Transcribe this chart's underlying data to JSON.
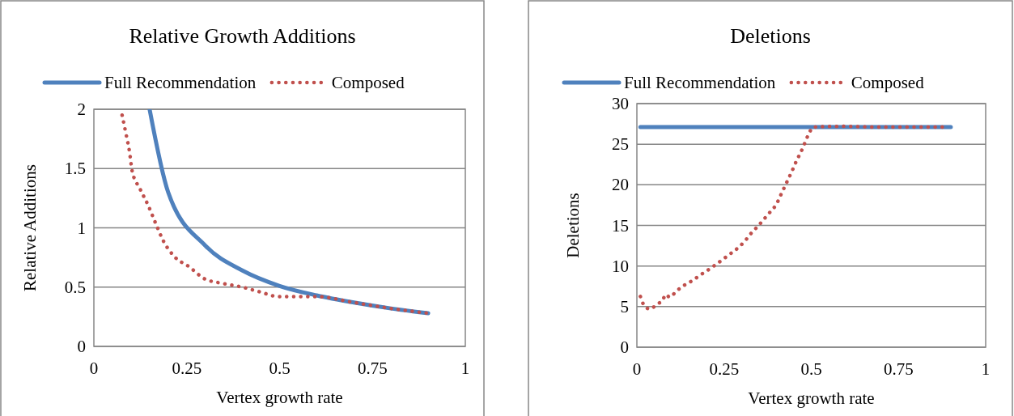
{
  "chart_data": [
    {
      "type": "line",
      "title": "Relative Growth Additions",
      "xlabel": "Vertex growth rate",
      "ylabel": "Relative Additions",
      "xlim": [
        0,
        1
      ],
      "xticks": [
        0,
        0.25,
        0.5,
        0.75,
        1
      ],
      "ylim": [
        0,
        2
      ],
      "yticks": [
        0,
        0.5,
        1,
        1.5,
        2
      ],
      "grid": "y",
      "legend": "top",
      "marker": "none",
      "series": [
        {
          "name": "Full Recommendation",
          "color": "#4f81bd",
          "line_style": "solid",
          "x": [
            0.15,
            0.2,
            0.3,
            0.4,
            0.5,
            0.6,
            0.7,
            0.8,
            0.9
          ],
          "values": [
            2,
            1.3,
            0.85,
            0.64,
            0.51,
            0.43,
            0.37,
            0.32,
            0.28
          ]
        },
        {
          "name": "Composed",
          "color": "#c0504d",
          "line_style": "dotted",
          "x": [
            0.076,
            0.086,
            0.096,
            0.103,
            0.124,
            0.146,
            0.166,
            0.187,
            0.216,
            0.257,
            0.298,
            0.349,
            0.399,
            0.447,
            0.497,
            0.549,
            0.599,
            0.7,
            0.8,
            0.9
          ],
          "values": [
            1.95,
            1.8,
            1.64,
            1.48,
            1.33,
            1.19,
            1.04,
            0.89,
            0.76,
            0.67,
            0.57,
            0.53,
            0.5,
            0.46,
            0.42,
            0.42,
            0.42,
            0.37,
            0.32,
            0.28
          ]
        }
      ]
    },
    {
      "type": "line",
      "title": "Deletions",
      "xlabel": "Vertex growth rate",
      "ylabel": "Deletions",
      "xlim": [
        0,
        1
      ],
      "xticks": [
        0,
        0.25,
        0.5,
        0.75,
        1
      ],
      "ylim": [
        0,
        30
      ],
      "yticks": [
        0,
        5,
        10,
        15,
        20,
        25,
        30
      ],
      "grid": "y",
      "legend": "top",
      "marker": "none",
      "series": [
        {
          "name": "Full Recommendation",
          "color": "#4f81bd",
          "line_style": "solid",
          "x": [
            0.01,
            0.9
          ],
          "values": [
            27.1,
            27.1
          ]
        },
        {
          "name": "Composed",
          "color": "#c0504d",
          "line_style": "dotted",
          "x": [
            0.01,
            0.02,
            0.037,
            0.058,
            0.074,
            0.083,
            0.094,
            0.113,
            0.135,
            0.159,
            0.182,
            0.204,
            0.227,
            0.249,
            0.271,
            0.292,
            0.312,
            0.329,
            0.347,
            0.365,
            0.383,
            0.4,
            0.412,
            0.423,
            0.435,
            0.447,
            0.458,
            0.47,
            0.481,
            0.492,
            0.506,
            0.588,
            0.697,
            0.888
          ],
          "values": [
            6.25,
            5.2,
            4.7,
            5.3,
            5.8,
            6.5,
            6.15,
            6.9,
            7.6,
            8.2,
            8.9,
            9.5,
            10.2,
            10.9,
            11.6,
            12.3,
            13.2,
            14.1,
            14.9,
            15.8,
            16.7,
            17.6,
            18.7,
            19.7,
            20.8,
            21.9,
            23,
            24,
            25.1,
            26.2,
            27.1,
            27.2,
            27.1,
            27.1
          ]
        }
      ]
    }
  ]
}
